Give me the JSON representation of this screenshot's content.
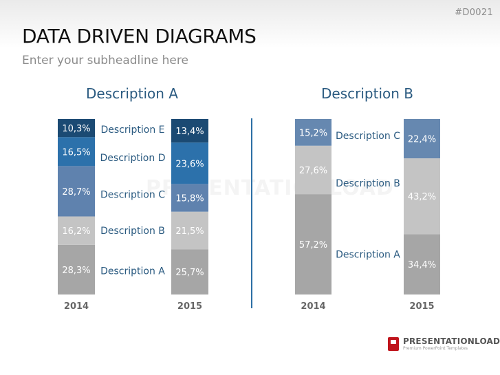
{
  "header": {
    "slide_code": "#D0021",
    "title": "DATA DRIVEN DIAGRAMS",
    "subtitle": "Enter your subheadline here"
  },
  "watermark_text": "PRESENTATIONLOAD",
  "logo": {
    "brand": "PRESENTATIONLOAD",
    "tagline": "Premium PowerPoint Templates"
  },
  "colors": {
    "title": "#2a5a80",
    "divider": "#2c6fa5",
    "year_label": "#666666"
  },
  "chart_data": [
    {
      "type": "stacked-bar",
      "title": "Description A",
      "unit": "%",
      "categories": [
        "2014",
        "2015"
      ],
      "series": [
        {
          "name": "Description A",
          "color": "#a6a6a6",
          "values": [
            28.3,
            25.7
          ],
          "labels": [
            "28,3%",
            "25,7%"
          ]
        },
        {
          "name": "Description B",
          "color": "#c4c4c4",
          "values": [
            16.2,
            21.5
          ],
          "labels": [
            "16,2%",
            "21,5%"
          ]
        },
        {
          "name": "Description C",
          "color": "#5f82ae",
          "values": [
            28.7,
            15.8
          ],
          "labels": [
            "28,7%",
            "15,8%"
          ]
        },
        {
          "name": "Description D",
          "color": "#2c71ab",
          "values": [
            16.5,
            23.6
          ],
          "labels": [
            "16,5%",
            "23,6%"
          ]
        },
        {
          "name": "Description E",
          "color": "#1b4a73",
          "values": [
            10.3,
            13.4
          ],
          "labels": [
            "10,3%",
            "13,4%"
          ]
        }
      ]
    },
    {
      "type": "stacked-bar",
      "title": "Description B",
      "unit": "%",
      "categories": [
        "2014",
        "2015"
      ],
      "series": [
        {
          "name": "Description A",
          "color": "#a6a6a6",
          "values": [
            57.2,
            34.4
          ],
          "labels": [
            "57,2%",
            "34,4%"
          ]
        },
        {
          "name": "Description B",
          "color": "#c4c4c4",
          "values": [
            27.6,
            43.2
          ],
          "labels": [
            "27,6%",
            "43,2%"
          ]
        },
        {
          "name": "Description C",
          "color": "#6688b0",
          "values": [
            15.2,
            22.4
          ],
          "labels": [
            "15,2%",
            "22,4%"
          ]
        }
      ]
    }
  ]
}
